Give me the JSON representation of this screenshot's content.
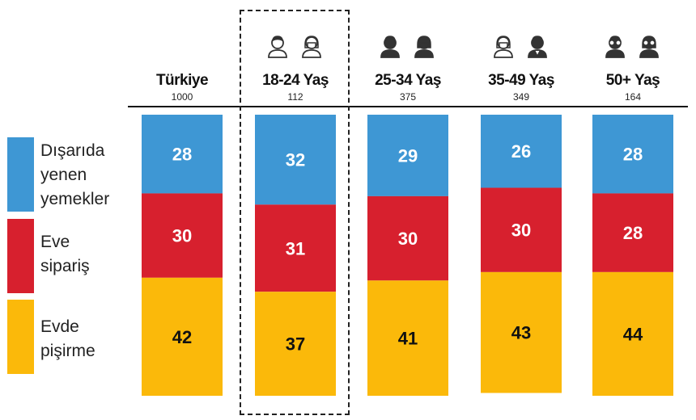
{
  "colors": {
    "dining_out": "#3e97d4",
    "delivery": "#d7202e",
    "home_cooking": "#fbb90a",
    "highlight_border": "#222222"
  },
  "legend": [
    {
      "label": "Dışarıda\nyenen\nyemekler",
      "color": "#3e97d4"
    },
    {
      "label": "Eve\nsipariş",
      "color": "#d7202e"
    },
    {
      "label": "Evde\npişirme",
      "color": "#fbb90a"
    }
  ],
  "columns": [
    {
      "title": "Türkiye",
      "n": "1000",
      "icons": []
    },
    {
      "title": "18-24 Yaş",
      "n": "112",
      "icons": [
        "young-man-outline-icon",
        "young-woman-outline-icon"
      ],
      "highlighted": true
    },
    {
      "title": "25-34 Yaş",
      "n": "375",
      "icons": [
        "man-icon",
        "woman-icon"
      ]
    },
    {
      "title": "35-49 Yaş",
      "n": "349",
      "icons": [
        "woman-outline-icon",
        "man-suit-icon"
      ]
    },
    {
      "title": "50+ Yaş",
      "n": "164",
      "icons": [
        "old-man-glasses-icon",
        "old-woman-glasses-icon"
      ]
    }
  ],
  "chart_data": {
    "type": "bar",
    "stacked": true,
    "percent_stacked": true,
    "categories": [
      "Türkiye",
      "18-24 Yaş",
      "25-34 Yaş",
      "35-49 Yaş",
      "50+ Yaş"
    ],
    "series": [
      {
        "name": "Dışarıda yenen yemekler",
        "values": [
          28,
          32,
          29,
          26,
          28
        ],
        "color": "#3e97d4"
      },
      {
        "name": "Eve sipariş",
        "values": [
          30,
          31,
          30,
          30,
          28
        ],
        "color": "#d7202e"
      },
      {
        "name": "Evde pişirme",
        "values": [
          42,
          37,
          41,
          43,
          44
        ],
        "color": "#fbb90a"
      }
    ],
    "sample_sizes": [
      "1000",
      "112",
      "375",
      "349",
      "164"
    ],
    "title": "",
    "xlabel": "",
    "ylabel": "",
    "ylim": [
      0,
      100
    ],
    "grid": false,
    "legend_position": "left"
  }
}
